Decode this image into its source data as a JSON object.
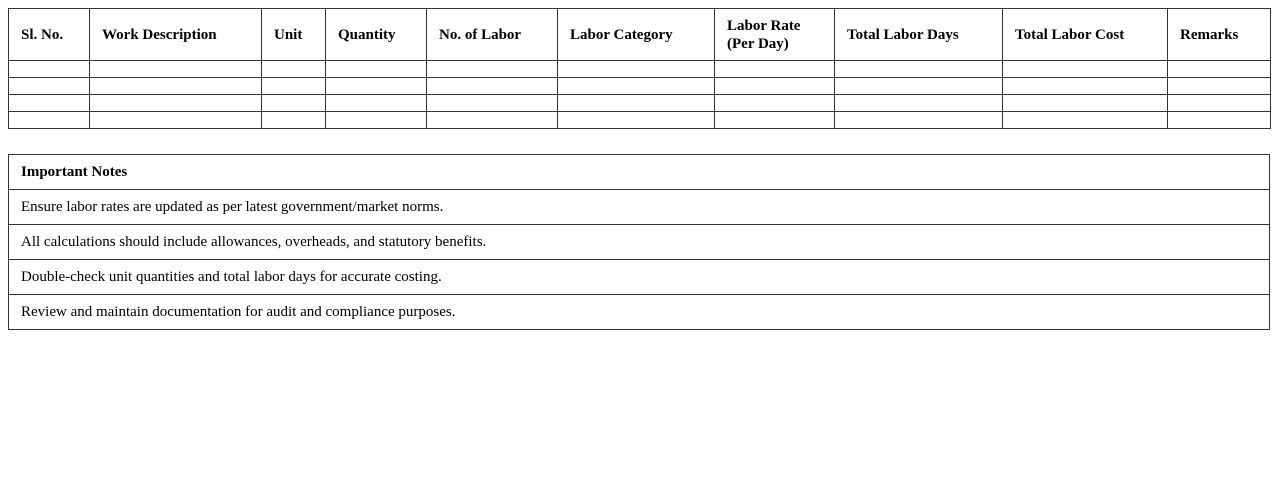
{
  "labor_table": {
    "headers": [
      "Sl. No.",
      "Work Description",
      "Unit",
      "Quantity",
      "No. of Labor",
      "Labor Category",
      "Labor Rate (Per Day)",
      "Total Labor Days",
      "Total Labor Cost",
      "Remarks"
    ],
    "empty_rows": 4
  },
  "notes": {
    "title": "Important Notes",
    "items": [
      "Ensure labor rates are updated as per latest government/market norms.",
      "All calculations should include allowances, overheads, and statutory benefits.",
      "Double-check unit quantities and total labor days for accurate costing.",
      "Review and maintain documentation for audit and compliance purposes."
    ]
  }
}
